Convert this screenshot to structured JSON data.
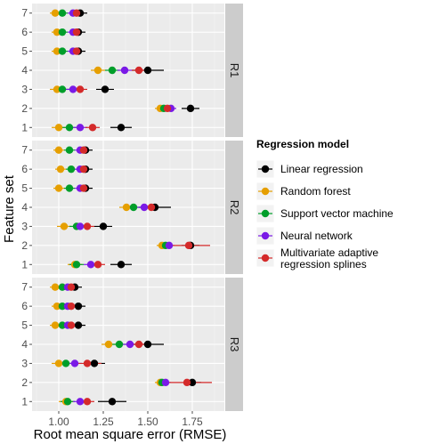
{
  "chart_data": {
    "type": "scatter",
    "xlabel": "Root mean square error (RMSE)",
    "ylabel": "Feature set",
    "xlim": [
      0.85,
      1.93
    ],
    "xticks": [
      "1.00",
      "1.25",
      "1.50",
      "1.75"
    ],
    "xtick_values": [
      1.0,
      1.25,
      1.5,
      1.75
    ],
    "yticks": [
      "1",
      "2",
      "3",
      "4",
      "5",
      "6",
      "7"
    ],
    "grid": true,
    "legend": {
      "title": "Regression model",
      "placement": "right",
      "entries": [
        {
          "label": "Linear regression",
          "color": "#000000"
        },
        {
          "label": "Random forest",
          "color": "#E69F00"
        },
        {
          "label": "Support vector machine",
          "color": "#009E2A"
        },
        {
          "label": "Neural network",
          "color": "#7A1AE6"
        },
        {
          "label": "Multivariate adaptive regression splines",
          "label_lines": [
            "Multivariate adaptive",
            "regression splines"
          ],
          "color": "#D42A2A"
        }
      ]
    },
    "panels": [
      {
        "label": "R1",
        "series": [
          {
            "name": "Linear regression",
            "values": [
              1.35,
              1.74,
              1.26,
              1.5,
              1.11,
              1.11,
              1.12
            ],
            "error": [
              0.06,
              0.05,
              0.05,
              0.09,
              0.04,
              0.04,
              0.04
            ]
          },
          {
            "name": "Random forest",
            "values": [
              1.0,
              1.57,
              0.99,
              1.22,
              0.99,
              0.99,
              0.98
            ],
            "error": [
              0.04,
              0.03,
              0.04,
              0.04,
              0.03,
              0.03,
              0.03
            ]
          },
          {
            "name": "Support vector machine",
            "values": [
              1.06,
              1.59,
              1.02,
              1.3,
              1.02,
              1.02,
              1.02
            ],
            "error": [
              0.04,
              0.03,
              0.04,
              0.04,
              0.03,
              0.03,
              0.03
            ]
          },
          {
            "name": "Neural network",
            "values": [
              1.12,
              1.63,
              1.08,
              1.37,
              1.08,
              1.08,
              1.08
            ],
            "error": [
              0.04,
              0.03,
              0.04,
              0.04,
              0.03,
              0.03,
              0.03
            ]
          },
          {
            "name": "Multivariate adaptive regression splines",
            "values": [
              1.19,
              1.61,
              1.12,
              1.45,
              1.1,
              1.1,
              1.1
            ],
            "error": [
              0.04,
              0.03,
              0.04,
              0.04,
              0.03,
              0.03,
              0.03
            ]
          }
        ]
      },
      {
        "label": "R2",
        "series": [
          {
            "name": "Linear regression",
            "values": [
              1.35,
              1.74,
              1.25,
              1.54,
              1.15,
              1.15,
              1.15
            ],
            "error": [
              0.06,
              0.05,
              0.05,
              0.09,
              0.04,
              0.04,
              0.04
            ]
          },
          {
            "name": "Random forest",
            "values": [
              1.09,
              1.58,
              1.03,
              1.38,
              1.0,
              1.01,
              1.0
            ],
            "error": [
              0.04,
              0.03,
              0.04,
              0.04,
              0.03,
              0.03,
              0.03
            ]
          },
          {
            "name": "Support vector machine",
            "values": [
              1.1,
              1.6,
              1.1,
              1.42,
              1.06,
              1.07,
              1.06
            ],
            "error": [
              0.04,
              0.03,
              0.04,
              0.04,
              0.03,
              0.03,
              0.03
            ]
          },
          {
            "name": "Neural network",
            "values": [
              1.18,
              1.62,
              1.12,
              1.48,
              1.12,
              1.12,
              1.12
            ],
            "error": [
              0.04,
              0.03,
              0.04,
              0.04,
              0.03,
              0.03,
              0.03
            ]
          },
          {
            "name": "Multivariate adaptive regression splines",
            "values": [
              1.22,
              1.73,
              1.16,
              1.52,
              1.14,
              1.14,
              1.14
            ],
            "error": [
              0.04,
              0.12,
              0.04,
              0.04,
              0.03,
              0.03,
              0.03
            ]
          }
        ]
      },
      {
        "label": "R3",
        "series": [
          {
            "name": "Linear regression",
            "values": [
              1.3,
              1.75,
              1.2,
              1.5,
              1.11,
              1.11,
              1.09
            ],
            "error": [
              0.08,
              0.05,
              0.06,
              0.09,
              0.04,
              0.04,
              0.04
            ]
          },
          {
            "name": "Random forest",
            "values": [
              1.04,
              1.57,
              1.0,
              1.28,
              0.98,
              0.99,
              0.98
            ],
            "error": [
              0.04,
              0.03,
              0.04,
              0.04,
              0.03,
              0.03,
              0.03
            ]
          },
          {
            "name": "Support vector machine",
            "values": [
              1.05,
              1.58,
              1.04,
              1.34,
              1.02,
              1.02,
              1.02
            ],
            "error": [
              0.04,
              0.03,
              0.04,
              0.04,
              0.03,
              0.03,
              0.03
            ]
          },
          {
            "name": "Neural network",
            "values": [
              1.12,
              1.6,
              1.09,
              1.4,
              1.05,
              1.05,
              1.05
            ],
            "error": [
              0.04,
              0.03,
              0.04,
              0.04,
              0.03,
              0.03,
              0.03
            ]
          },
          {
            "name": "Multivariate adaptive regression splines",
            "values": [
              1.16,
              1.72,
              1.16,
              1.45,
              1.07,
              1.07,
              1.07
            ],
            "error": [
              0.04,
              0.14,
              0.08,
              0.04,
              0.03,
              0.03,
              0.03
            ]
          }
        ]
      }
    ]
  }
}
